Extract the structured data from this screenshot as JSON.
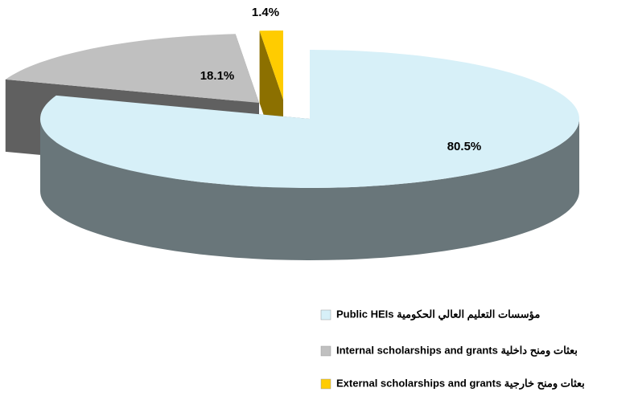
{
  "chart_data": {
    "type": "pie3d",
    "categories": [
      "Public HEIs مؤسسات التعليم العالي الحكومية",
      "Internal scholarships and grants بعثات ومنح داخلية",
      "External scholarships and grants بعثات ومنح خارجية"
    ],
    "values": [
      80.5,
      18.1,
      1.4
    ],
    "value_labels": [
      "80.5%",
      "18.1%",
      "1.4%"
    ],
    "colors": [
      "#d7f0f8",
      "#c0c0c0",
      "#ffcc00"
    ]
  }
}
